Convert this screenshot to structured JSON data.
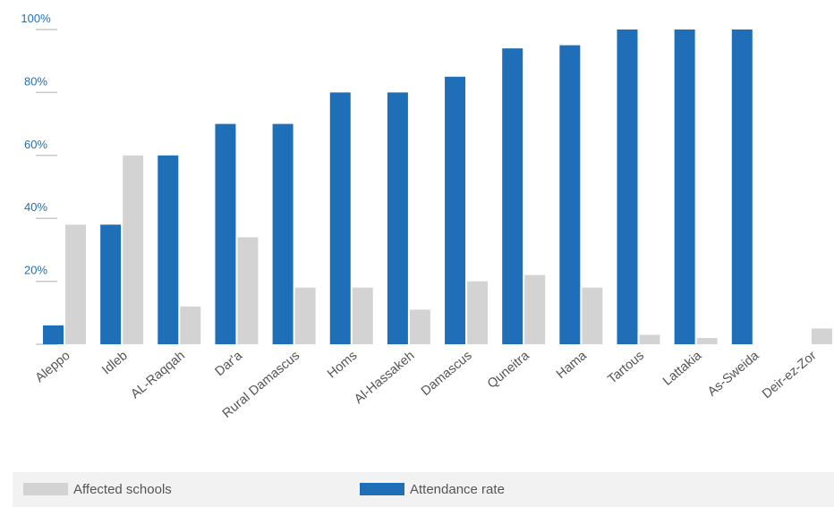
{
  "chart_data": {
    "type": "bar",
    "title": "",
    "xlabel": "",
    "ylabel": "",
    "ylim": [
      0,
      100
    ],
    "yticks": [
      "20%",
      "40%",
      "60%",
      "80%",
      "100%"
    ],
    "categories": [
      "Aleppo",
      "Idleb",
      "AL-Raqqah",
      "Dar'a",
      "Rural Damascus",
      "Homs",
      "Al-Hassakeh",
      "Damascus",
      "Quneitra",
      "Hama",
      "Tartous",
      "Lattakia",
      "As-Sweida",
      "Deir-ez-Zor"
    ],
    "series": [
      {
        "name": "Attendance rate",
        "color": "#1f6fb8",
        "values": [
          6,
          38,
          60,
          70,
          70,
          80,
          80,
          85,
          94,
          95,
          100,
          100,
          100,
          0
        ]
      },
      {
        "name": "Affected schools",
        "color": "#d3d3d3",
        "values": [
          38,
          60,
          12,
          34,
          18,
          18,
          11,
          20,
          22,
          18,
          3,
          2,
          0,
          5
        ]
      }
    ],
    "grid": false,
    "legend_position": "bottom"
  },
  "legend": {
    "affected_label": "Affected schools",
    "attendance_label": "Attendance rate"
  }
}
